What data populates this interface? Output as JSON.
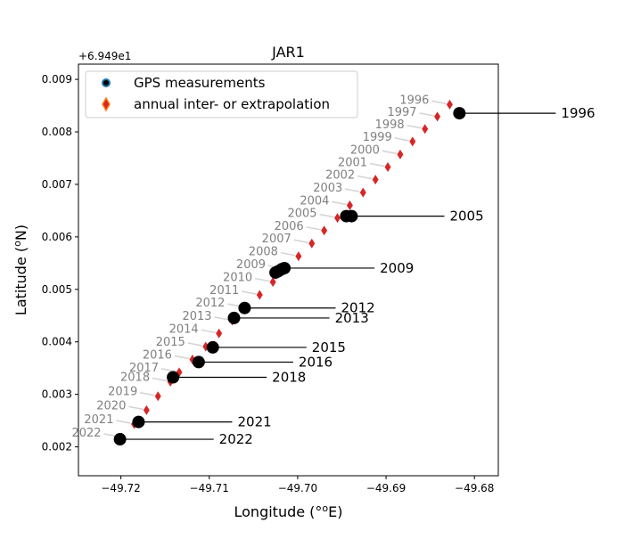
{
  "chart_data": {
    "type": "scatter",
    "title": "JAR1",
    "xlabel": "Longitude (°E)",
    "ylabel": "Latitude (°N)",
    "y_offset_text": "+6.949e1",
    "xlim": [
      -49.7248,
      -49.6773
    ],
    "ylim": [
      0.00145,
      0.00929
    ],
    "xticks": [
      {
        "value": -49.72,
        "label": "−49.72"
      },
      {
        "value": -49.71,
        "label": "−49.71"
      },
      {
        "value": -49.7,
        "label": "−49.70"
      },
      {
        "value": -49.69,
        "label": "−49.69"
      },
      {
        "value": -49.68,
        "label": "−49.68"
      }
    ],
    "yticks": [
      {
        "value": 0.002,
        "label": "0.002"
      },
      {
        "value": 0.003,
        "label": "0.003"
      },
      {
        "value": 0.004,
        "label": "0.004"
      },
      {
        "value": 0.005,
        "label": "0.005"
      },
      {
        "value": 0.006,
        "label": "0.006"
      },
      {
        "value": 0.007,
        "label": "0.007"
      },
      {
        "value": 0.008,
        "label": "0.008"
      },
      {
        "value": 0.009,
        "label": "0.009"
      }
    ],
    "grid": false,
    "legend_position": "top-left",
    "legend": [
      {
        "label": "GPS measurements",
        "marker": "circle"
      },
      {
        "label": "annual inter- or extrapolation",
        "marker": "diamond"
      }
    ],
    "colors": {
      "gps": "#000000",
      "gps_legend_edge": "#1f77b4",
      "annual": "#d62728",
      "annual_legend_edge": "#ff7f0e",
      "annual_label": "#808080",
      "annual_leader": "#d3d3d3",
      "gps_leader": "#000000"
    },
    "series": [
      {
        "name": "GPS measurements",
        "marker": "circle",
        "points": [
          {
            "label": "1996",
            "x": -49.6817,
            "y": 0.008355,
            "dx": 0.0113
          },
          {
            "label": "2005",
            "x": -49.6939,
            "y": 0.006395,
            "dx": 0.0109
          },
          {
            "label": "2009",
            "x": -49.7015,
            "y": 0.005405,
            "dx": 0.0106
          },
          {
            "label": "2012",
            "x": -49.706,
            "y": 0.004645,
            "dx": 0.0107
          },
          {
            "label": "2013",
            "x": -49.7072,
            "y": 0.004455,
            "dx": 0.0112
          },
          {
            "label": "2015",
            "x": -49.7096,
            "y": 0.003895,
            "dx": 0.011
          },
          {
            "label": "2016",
            "x": -49.7112,
            "y": 0.003615,
            "dx": 0.0111
          },
          {
            "label": "2018",
            "x": -49.7141,
            "y": 0.003325,
            "dx": 0.011
          },
          {
            "label": "2021",
            "x": -49.718,
            "y": 0.002475,
            "dx": 0.011
          },
          {
            "label": "2022",
            "x": -49.7201,
            "y": 0.002145,
            "dx": 0.011
          }
        ],
        "extra_points": [
          {
            "x": -49.6945,
            "y": 0.006395
          },
          {
            "x": -49.7018,
            "y": 0.005385
          },
          {
            "x": -49.7022,
            "y": 0.005345
          },
          {
            "x": -49.7025,
            "y": 0.00532
          }
        ]
      },
      {
        "name": "annual inter- or extrapolation",
        "marker": "diamond",
        "points": [
          {
            "label": "1996",
            "x": -49.6828,
            "y": 0.00852
          },
          {
            "label": "1997",
            "x": -49.6842,
            "y": 0.00829
          },
          {
            "label": "1998",
            "x": -49.6856,
            "y": 0.008055
          },
          {
            "label": "1999",
            "x": -49.687,
            "y": 0.007815
          },
          {
            "label": "2000",
            "x": -49.6884,
            "y": 0.00757
          },
          {
            "label": "2001",
            "x": -49.6898,
            "y": 0.00733
          },
          {
            "label": "2002",
            "x": -49.6912,
            "y": 0.00709
          },
          {
            "label": "2003",
            "x": -49.6926,
            "y": 0.006845
          },
          {
            "label": "2004",
            "x": -49.6941,
            "y": 0.0066
          },
          {
            "label": "2005",
            "x": -49.6955,
            "y": 0.00636
          },
          {
            "label": "2006",
            "x": -49.697,
            "y": 0.00612
          },
          {
            "label": "2007",
            "x": -49.6984,
            "y": 0.005875
          },
          {
            "label": "2008",
            "x": -49.6999,
            "y": 0.00563
          },
          {
            "label": "2009",
            "x": -49.7013,
            "y": 0.005385
          },
          {
            "label": "2010",
            "x": -49.7028,
            "y": 0.00514
          },
          {
            "label": "2011",
            "x": -49.7043,
            "y": 0.004895
          },
          {
            "label": "2012",
            "x": -49.7059,
            "y": 0.004655
          },
          {
            "label": "2013",
            "x": -49.7074,
            "y": 0.004405
          },
          {
            "label": "2014",
            "x": -49.7089,
            "y": 0.00416
          },
          {
            "label": "2015",
            "x": -49.7104,
            "y": 0.00391
          },
          {
            "label": "2016",
            "x": -49.7119,
            "y": 0.003665
          },
          {
            "label": "2017",
            "x": -49.7134,
            "y": 0.00342
          },
          {
            "label": "2018",
            "x": -49.7144,
            "y": 0.00324
          },
          {
            "label": "2019",
            "x": -49.7158,
            "y": 0.002965
          },
          {
            "label": "2020",
            "x": -49.7171,
            "y": 0.0027
          },
          {
            "label": "2021",
            "x": -49.7185,
            "y": 0.002435
          },
          {
            "label": "2022",
            "x": -49.7199,
            "y": 0.00218
          }
        ]
      }
    ]
  }
}
